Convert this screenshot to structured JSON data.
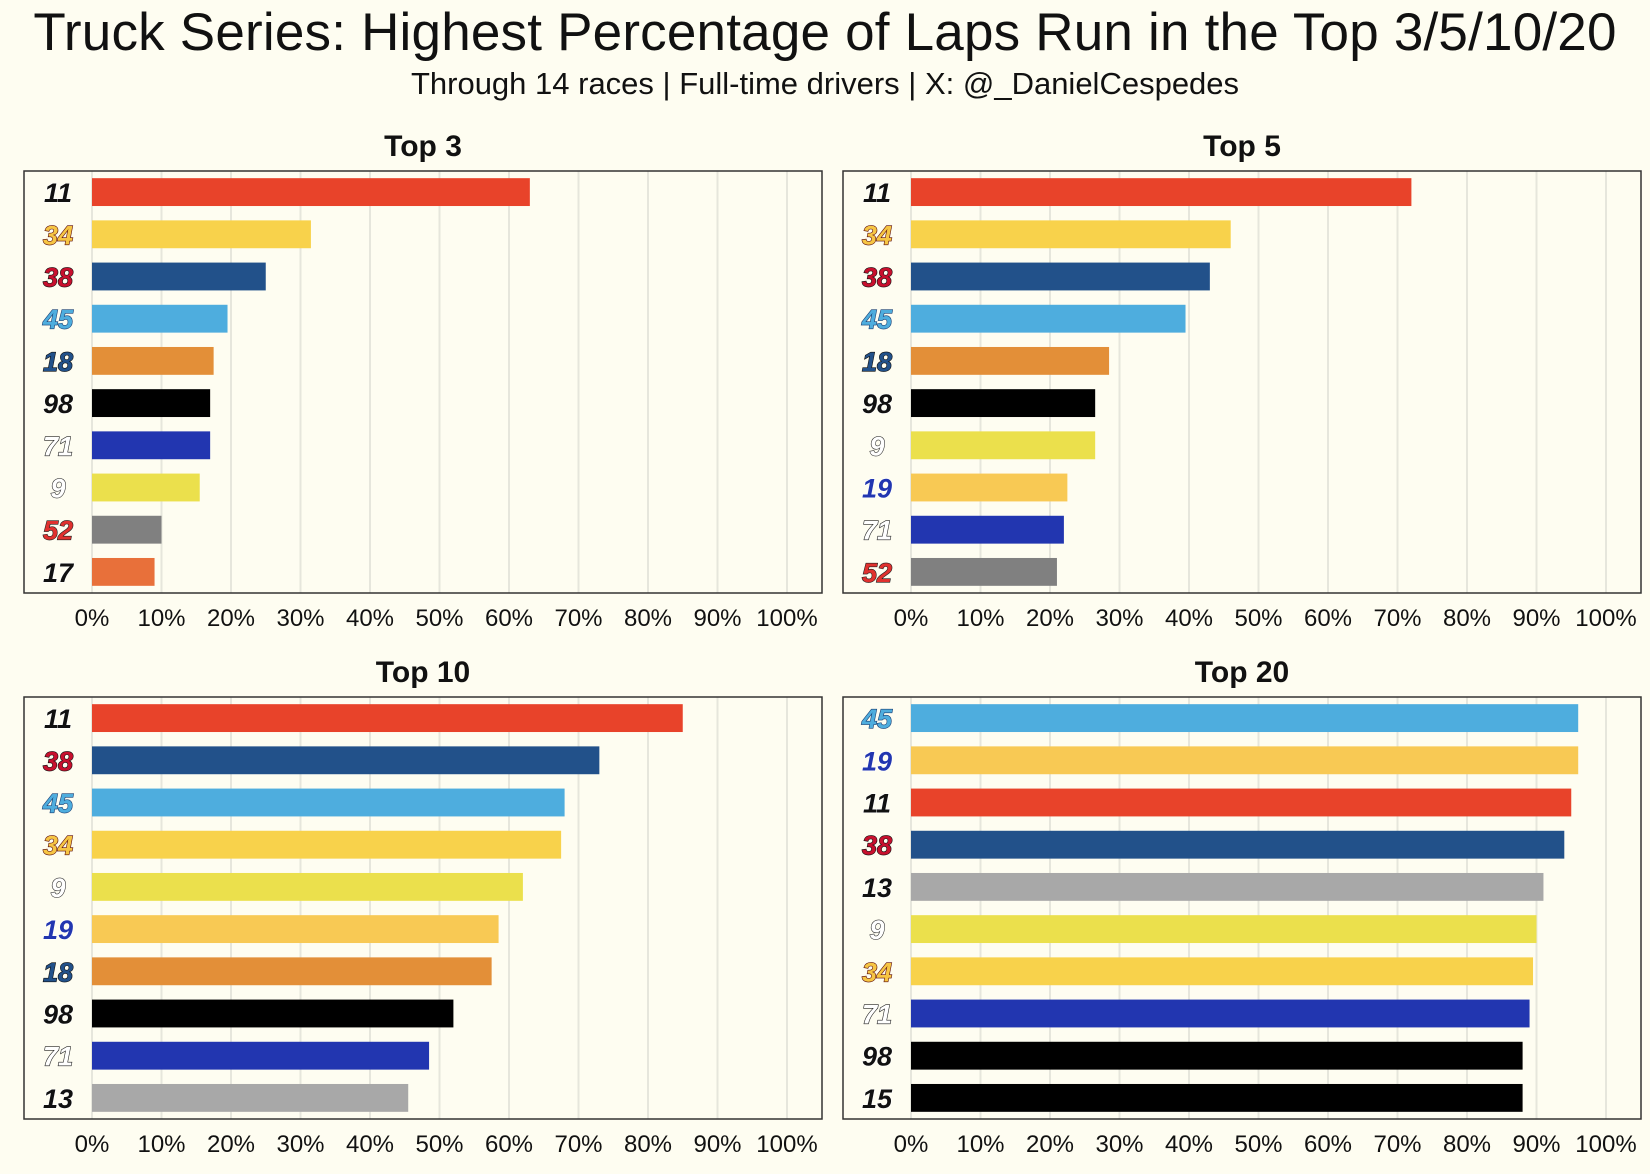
{
  "title": "Truck Series: Highest Percentage of Laps Run in the Top 3/5/10/20",
  "subtitle": "Through 14 races | Full-time drivers | X: @_DanielCespedes",
  "colors": {
    "background": "#fefdf1",
    "grid": "#e6e6dc",
    "frame": "#333333"
  },
  "chart_data": [
    {
      "type": "bar",
      "orientation": "horizontal",
      "title": "Top 3",
      "categories": [
        "11",
        "34",
        "38",
        "45",
        "18",
        "98",
        "71",
        "9",
        "52",
        "17"
      ],
      "values": [
        63,
        31.5,
        25,
        19.5,
        17.5,
        17,
        17,
        15.5,
        10,
        9
      ],
      "bar_colors": [
        "#e8432a",
        "#f8d24b",
        "#22518a",
        "#4eadde",
        "#e38f38",
        "#000000",
        "#2236b0",
        "#ebe04c",
        "#808080",
        "#e8703a"
      ],
      "xlim": [
        0,
        100
      ],
      "xticks": [
        "0%",
        "10%",
        "20%",
        "30%",
        "40%",
        "50%",
        "60%",
        "70%",
        "80%",
        "90%",
        "100%"
      ],
      "grid": true
    },
    {
      "type": "bar",
      "orientation": "horizontal",
      "title": "Top 5",
      "categories": [
        "11",
        "34",
        "38",
        "45",
        "18",
        "98",
        "9",
        "19",
        "71",
        "52"
      ],
      "values": [
        72,
        46,
        43,
        39.5,
        28.5,
        26.5,
        26.5,
        22.5,
        22,
        21
      ],
      "bar_colors": [
        "#e8432a",
        "#f8d24b",
        "#22518a",
        "#4eadde",
        "#e38f38",
        "#000000",
        "#ebe04c",
        "#f8c954",
        "#2236b0",
        "#808080"
      ],
      "xlim": [
        0,
        100
      ],
      "xticks": [
        "0%",
        "10%",
        "20%",
        "30%",
        "40%",
        "50%",
        "60%",
        "70%",
        "80%",
        "90%",
        "100%"
      ],
      "grid": true
    },
    {
      "type": "bar",
      "orientation": "horizontal",
      "title": "Top 10",
      "categories": [
        "11",
        "38",
        "45",
        "34",
        "9",
        "19",
        "18",
        "98",
        "71",
        "13"
      ],
      "values": [
        85,
        73,
        68,
        67.5,
        62,
        58.5,
        57.5,
        52,
        48.5,
        45.5
      ],
      "bar_colors": [
        "#e8432a",
        "#22518a",
        "#4eadde",
        "#f8d24b",
        "#ebe04c",
        "#f8c954",
        "#e38f38",
        "#000000",
        "#2236b0",
        "#a8a8a8"
      ],
      "xlim": [
        0,
        100
      ],
      "xticks": [
        "0%",
        "10%",
        "20%",
        "30%",
        "40%",
        "50%",
        "60%",
        "70%",
        "80%",
        "90%",
        "100%"
      ],
      "grid": true
    },
    {
      "type": "bar",
      "orientation": "horizontal",
      "title": "Top 20",
      "categories": [
        "45",
        "19",
        "11",
        "38",
        "13",
        "9",
        "34",
        "71",
        "98",
        "15"
      ],
      "values": [
        96,
        96,
        95,
        94,
        91,
        90,
        89.5,
        89,
        88,
        88
      ],
      "bar_colors": [
        "#4eadde",
        "#f8c954",
        "#e8432a",
        "#22518a",
        "#a8a8a8",
        "#ebe04c",
        "#f8d24b",
        "#2236b0",
        "#000000",
        "#000000"
      ],
      "xlim": [
        0,
        100
      ],
      "xticks": [
        "0%",
        "10%",
        "20%",
        "30%",
        "40%",
        "50%",
        "60%",
        "70%",
        "80%",
        "90%",
        "100%"
      ],
      "grid": true
    }
  ],
  "number_styles": {
    "11": {
      "fill": "#111111",
      "stroke": "#ffffff"
    },
    "34": {
      "fill": "#f6c544",
      "stroke": "#5a0a0a"
    },
    "38": {
      "fill": "#c8102e",
      "stroke": "#111111"
    },
    "45": {
      "fill": "#4eadde",
      "stroke": "#1b3f73"
    },
    "18": {
      "fill": "#22518a",
      "stroke": "#111111"
    },
    "98": {
      "fill": "#111111",
      "stroke": "#ffffff"
    },
    "71": {
      "fill": "#ffffff",
      "stroke": "#222222"
    },
    "9": {
      "fill": "#ffffff",
      "stroke": "#333333"
    },
    "52": {
      "fill": "#e0312f",
      "stroke": "#222222"
    },
    "17": {
      "fill": "#111111",
      "stroke": "#ffffff"
    },
    "19": {
      "fill": "#2236b0",
      "stroke": "#ffffff"
    },
    "13": {
      "fill": "#111111",
      "stroke": "#ffffff"
    },
    "15": {
      "fill": "#111111",
      "stroke": "#ffffff"
    }
  }
}
